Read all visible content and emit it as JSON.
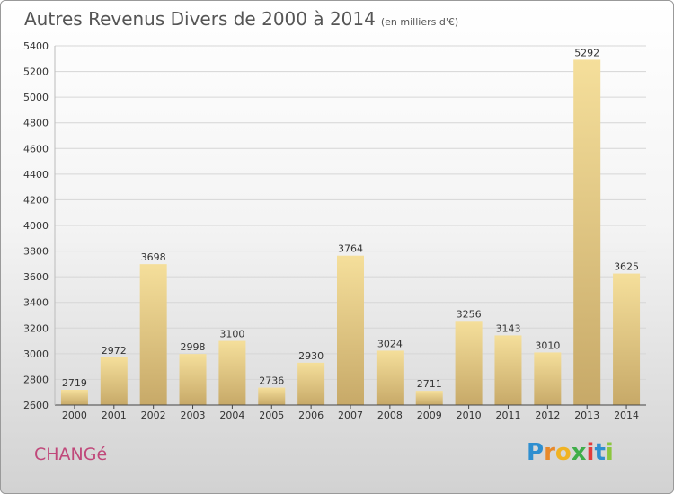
{
  "header": {
    "title": "Autres Revenus Divers de 2000 à 2014",
    "unit": "(en milliers d'€)"
  },
  "footer": {
    "commune": "CHANGé",
    "logo_letters": [
      "P",
      "r",
      "o",
      "x",
      "i",
      "t",
      "i"
    ],
    "logo_colors": [
      "#2f8fd0",
      "#e8892a",
      "#f0b323",
      "#3fae49",
      "#e23c3c",
      "#2f8fd0",
      "#8cc63f"
    ]
  },
  "colors": {
    "bar_light": "#f5df9b",
    "bar_dark": "#c7a968",
    "title": "#555555",
    "commune": "#c0487a"
  },
  "chart_data": {
    "type": "bar",
    "title": "Autres Revenus Divers de 2000 à 2014",
    "subtitle": "(en milliers d'€)",
    "categories": [
      "2000",
      "2001",
      "2002",
      "2003",
      "2004",
      "2005",
      "2006",
      "2007",
      "2008",
      "2009",
      "2010",
      "2011",
      "2012",
      "2013",
      "2014"
    ],
    "values": [
      2719,
      2972,
      3698,
      2998,
      3100,
      2736,
      2930,
      3764,
      3024,
      2711,
      3256,
      3143,
      3010,
      5292,
      3625
    ],
    "ylim": [
      2600,
      5400
    ],
    "yticks": [
      2600,
      2800,
      3000,
      3200,
      3400,
      3600,
      3800,
      4000,
      4200,
      4400,
      4600,
      4800,
      5000,
      5200,
      5400
    ],
    "grid": true,
    "data_labels": true,
    "legend": "none"
  }
}
